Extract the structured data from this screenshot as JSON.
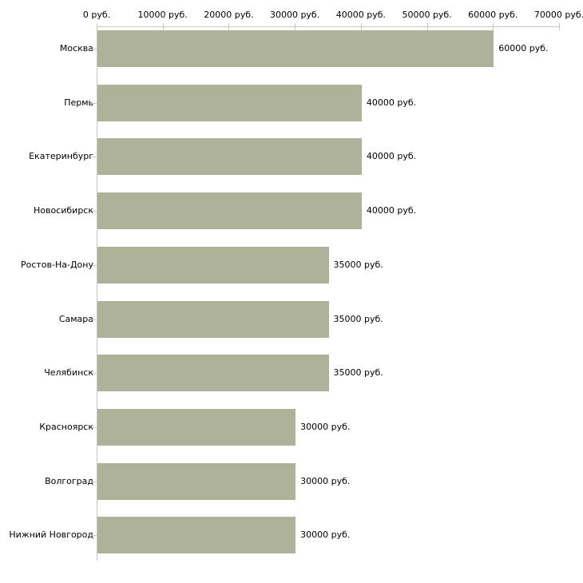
{
  "chart_data": {
    "type": "bar",
    "orientation": "horizontal",
    "title": "",
    "xlabel": "",
    "ylabel": "",
    "unit": "руб.",
    "categories": [
      "Москва",
      "Пермь",
      "Екатеринбург",
      "Новосибирск",
      "Ростов-На-Дону",
      "Самара",
      "Челябинск",
      "Красноярск",
      "Волгоград",
      "Нижний Новгород"
    ],
    "values": [
      60000,
      40000,
      40000,
      40000,
      35000,
      35000,
      35000,
      30000,
      30000,
      30000
    ],
    "value_labels": [
      "60000 руб.",
      "40000 руб.",
      "40000 руб.",
      "40000 руб.",
      "35000 руб.",
      "35000 руб.",
      "35000 руб.",
      "30000 руб.",
      "30000 руб.",
      "30000 руб."
    ],
    "x_axis": {
      "position": "top",
      "min": 0,
      "max": 70000,
      "tick_interval": 10000,
      "tick_values": [
        0,
        10000,
        20000,
        30000,
        40000,
        50000,
        60000,
        70000
      ],
      "tick_labels": [
        "0 руб.",
        "10000 руб.",
        "20000 руб.",
        "30000 руб.",
        "40000 руб.",
        "50000 руб.",
        "60000 руб.",
        "70000 руб."
      ]
    },
    "legend": false,
    "grid": false,
    "colors": {
      "bar": "#adb299",
      "axis_line": "#c6c6c6",
      "tick_mark": "#cfcba4",
      "text": "#000000",
      "background": "#ffffff"
    }
  }
}
